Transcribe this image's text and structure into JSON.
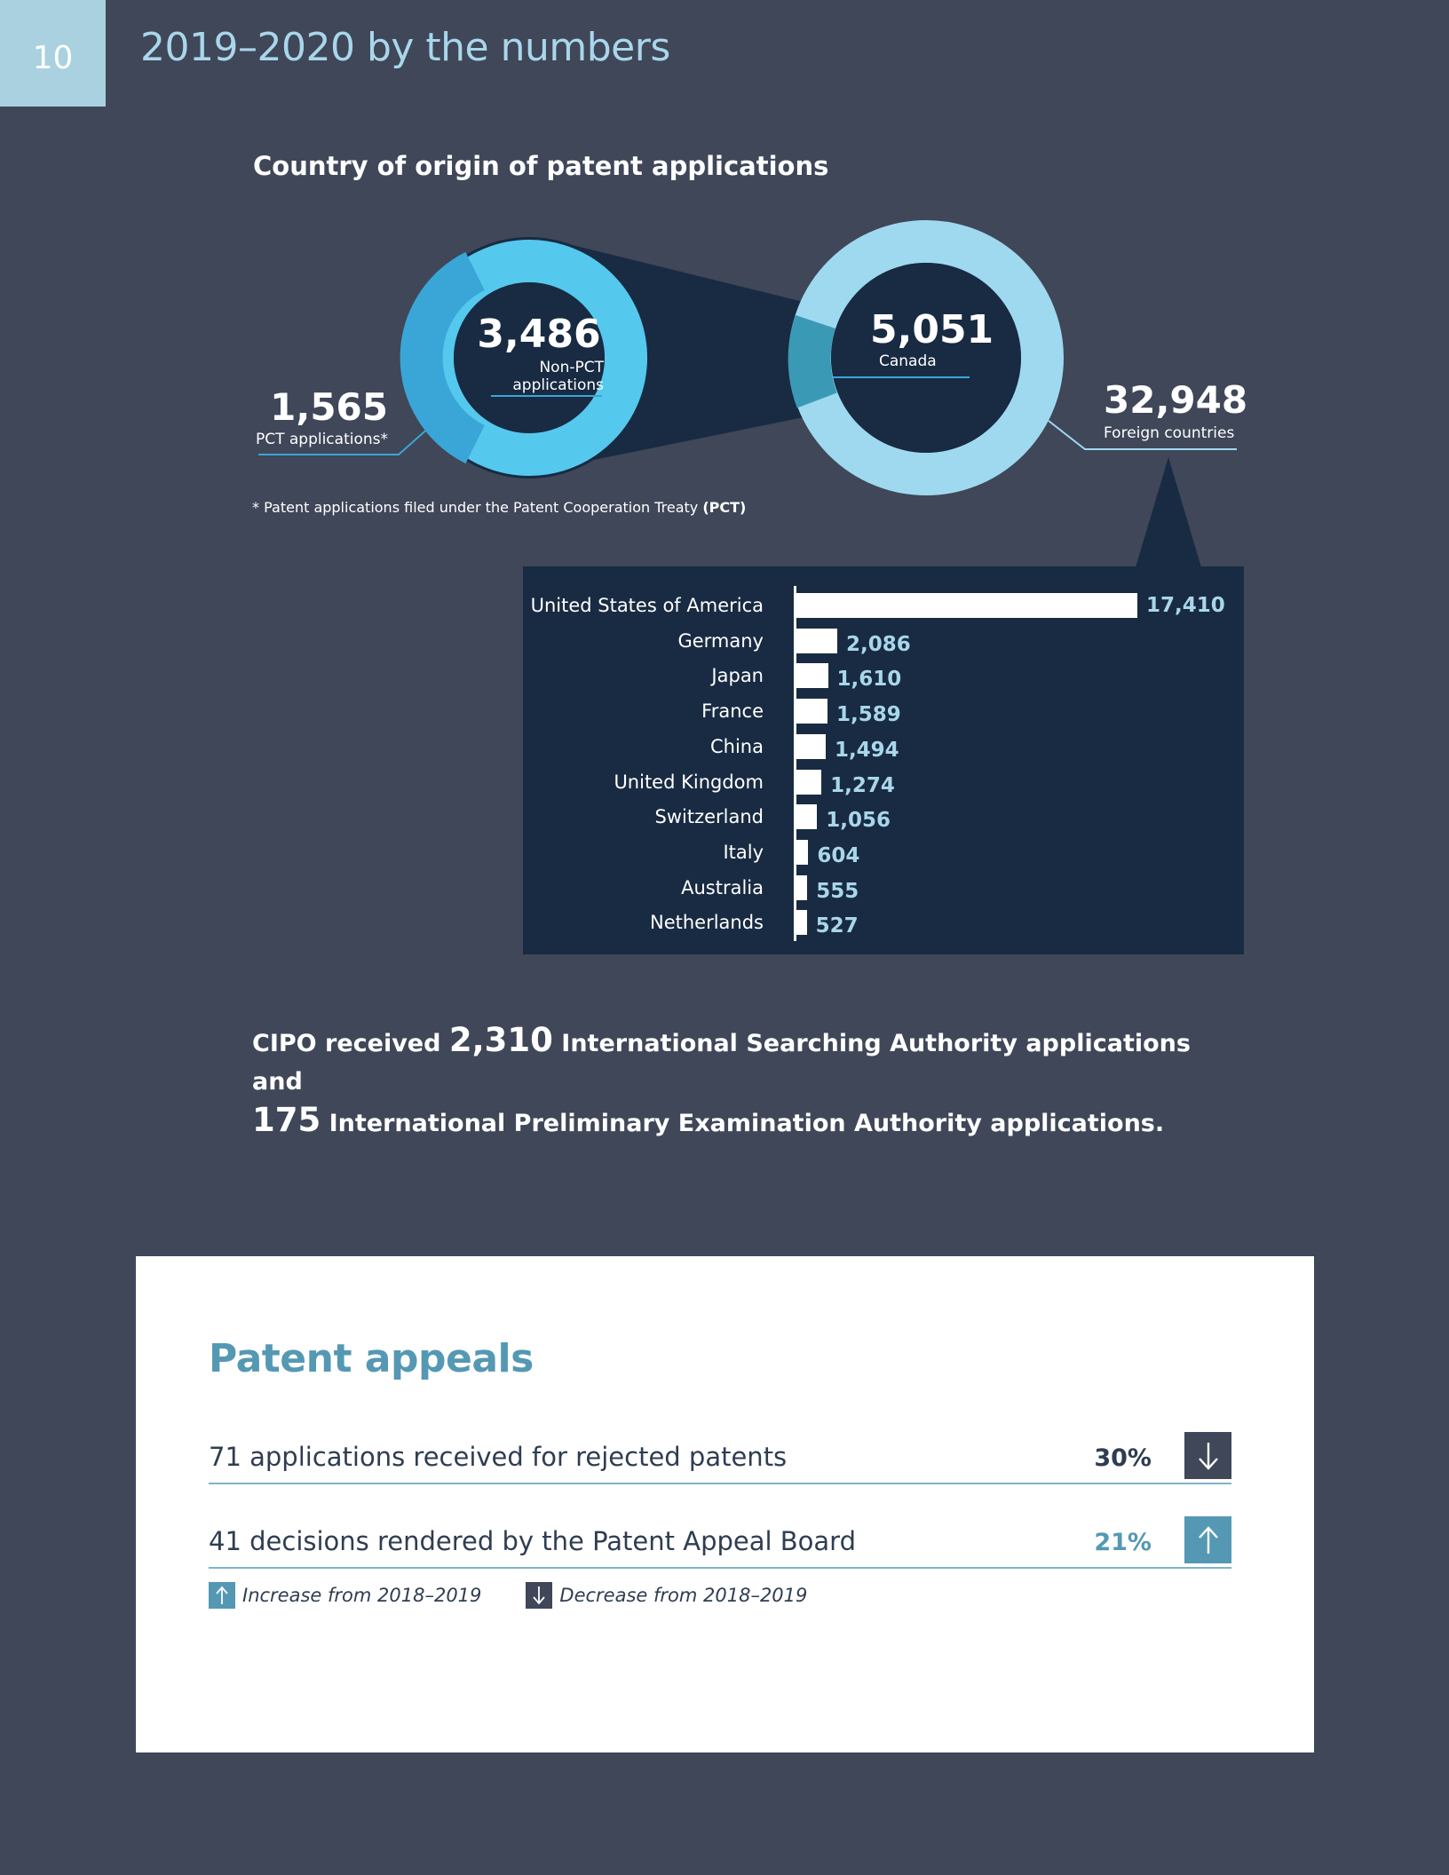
{
  "page": {
    "number": "10",
    "heading": "2019–2020 by the numbers"
  },
  "origin": {
    "title": "Country of origin of patent applications",
    "non_pct": {
      "value": "3,486",
      "label_line1": "Non-PCT",
      "label_line2": "applications"
    },
    "pct": {
      "value": "1,565",
      "label": "PCT applications*"
    },
    "canada": {
      "value": "5,051",
      "label": "Canada"
    },
    "foreign": {
      "value": "32,948",
      "label": "Foreign countries"
    },
    "footnote_prefix": "*  Patent applications filed under the Patent Cooperation Treaty ",
    "footnote_abbr": "(PCT)",
    "colors": {
      "dark_navy": "#182b42",
      "blue": "#3aa6d8",
      "light_blue": "#9fd9f0",
      "teal": "#3a9ab5"
    }
  },
  "chart_data": {
    "type": "bar",
    "orientation": "horizontal",
    "categories": [
      "United States of America",
      "Germany",
      "Japan",
      "France",
      "China",
      "United Kingdom",
      "Switzerland",
      "Italy",
      "Australia",
      "Netherlands"
    ],
    "values": [
      17410,
      2086,
      1610,
      1589,
      1494,
      1274,
      1056,
      604,
      555,
      527
    ],
    "value_labels": [
      "17,410",
      "2,086",
      "1,610",
      "1,589",
      "1,494",
      "1,274",
      "1,056",
      "604",
      "555",
      "527"
    ],
    "title": "",
    "xlabel": "",
    "ylabel": "",
    "grid": false
  },
  "summary": {
    "part1": "CIPO received ",
    "num1": "2,310",
    "part2": " International Searching Authority applications and",
    "num2": "175",
    "part3": " International Preliminary Examination Authority applications."
  },
  "appeals": {
    "title": "Patent appeals",
    "rows": [
      {
        "desc": "71 applications received for rejected patents",
        "pct": "30%",
        "direction": "down"
      },
      {
        "desc": "41 decisions rendered by the Patent Appeal Board",
        "pct": "21%",
        "direction": "up"
      }
    ],
    "legend": {
      "increase": "Increase from 2018–2019",
      "decrease": "Decrease from 2018–2019"
    }
  }
}
